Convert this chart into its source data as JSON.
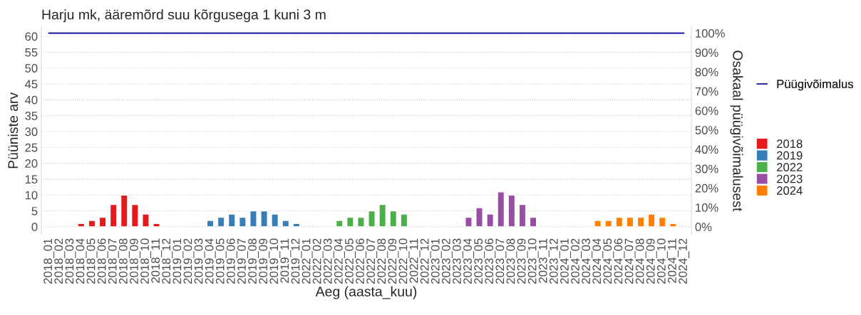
{
  "chart_data": {
    "type": "bar",
    "title": "Harju mk, ääremõrd suu kõrgusega 1 kuni 3 m",
    "xlabel": "Aeg (aasta_kuu)",
    "ylabel": "Püüniste arv",
    "y2label": "Osakaal püügivõimalusest",
    "categories": [
      "2018_01",
      "2018_02",
      "2018_03",
      "2018_04",
      "2018_05",
      "2018_06",
      "2018_07",
      "2018_08",
      "2018_09",
      "2018_10",
      "2018_11",
      "2018_12",
      "2019_01",
      "2019_02",
      "2019_03",
      "2019_04",
      "2019_05",
      "2019_06",
      "2019_07",
      "2019_08",
      "2019_09",
      "2019_10",
      "2019_11",
      "2019_12",
      "2022_01",
      "2022_02",
      "2022_03",
      "2022_04",
      "2022_05",
      "2022_06",
      "2022_07",
      "2022_08",
      "2022_09",
      "2022_10",
      "2022_11",
      "2022_12",
      "2023_01",
      "2023_02",
      "2023_03",
      "2023_04",
      "2023_05",
      "2023_06",
      "2023_07",
      "2023_08",
      "2023_09",
      "2023_10",
      "2023_11",
      "2023_12",
      "2024_01",
      "2024_02",
      "2024_03",
      "2024_04",
      "2024_05",
      "2024_06",
      "2024_07",
      "2024_08",
      "2024_09",
      "2024_10",
      "2024_11",
      "2024_12"
    ],
    "series": [
      {
        "name": "2018",
        "color": "#e41a1c",
        "values": [
          null,
          null,
          null,
          1,
          2,
          3,
          7,
          10,
          7,
          4,
          1,
          null,
          null,
          null,
          null,
          null,
          null,
          null,
          null,
          null,
          null,
          null,
          null,
          null,
          null,
          null,
          null,
          null,
          null,
          null,
          null,
          null,
          null,
          null,
          null,
          null,
          null,
          null,
          null,
          null,
          null,
          null,
          null,
          null,
          null,
          null,
          null,
          null,
          null,
          null,
          null,
          null,
          null,
          null,
          null,
          null,
          null,
          null,
          null,
          null
        ]
      },
      {
        "name": "2019",
        "color": "#377eb8",
        "values": [
          null,
          null,
          null,
          null,
          null,
          null,
          null,
          null,
          null,
          null,
          null,
          null,
          null,
          null,
          null,
          2,
          3,
          4,
          3,
          5,
          5,
          4,
          2,
          1,
          null,
          null,
          null,
          null,
          null,
          null,
          null,
          null,
          null,
          null,
          null,
          null,
          null,
          null,
          null,
          null,
          null,
          null,
          null,
          null,
          null,
          null,
          null,
          null,
          null,
          null,
          null,
          null,
          null,
          null,
          null,
          null,
          null,
          null,
          null,
          null
        ]
      },
      {
        "name": "2022",
        "color": "#4daf4a",
        "values": [
          null,
          null,
          null,
          null,
          null,
          null,
          null,
          null,
          null,
          null,
          null,
          null,
          null,
          null,
          null,
          null,
          null,
          null,
          null,
          null,
          null,
          null,
          null,
          null,
          null,
          null,
          null,
          2,
          3,
          3,
          5,
          7,
          5,
          4,
          null,
          null,
          null,
          null,
          null,
          null,
          null,
          null,
          null,
          null,
          null,
          null,
          null,
          null,
          null,
          null,
          null,
          null,
          null,
          null,
          null,
          null,
          null,
          null,
          null,
          null
        ]
      },
      {
        "name": "2023",
        "color": "#984ea3",
        "values": [
          null,
          null,
          null,
          null,
          null,
          null,
          null,
          null,
          null,
          null,
          null,
          null,
          null,
          null,
          null,
          null,
          null,
          null,
          null,
          null,
          null,
          null,
          null,
          null,
          null,
          null,
          null,
          null,
          null,
          null,
          null,
          null,
          null,
          null,
          null,
          null,
          null,
          null,
          null,
          3,
          6,
          4,
          11,
          10,
          7,
          3,
          null,
          null,
          null,
          null,
          null,
          null,
          null,
          null,
          null,
          null,
          null,
          null,
          null,
          null
        ]
      },
      {
        "name": "2024",
        "color": "#ff7f00",
        "values": [
          null,
          null,
          null,
          null,
          null,
          null,
          null,
          null,
          null,
          null,
          null,
          null,
          null,
          null,
          null,
          null,
          null,
          null,
          null,
          null,
          null,
          null,
          null,
          null,
          null,
          null,
          null,
          null,
          null,
          null,
          null,
          null,
          null,
          null,
          null,
          null,
          null,
          null,
          null,
          null,
          null,
          null,
          null,
          null,
          null,
          null,
          null,
          null,
          null,
          null,
          null,
          2,
          2,
          3,
          3,
          3,
          4,
          3,
          1,
          null
        ]
      },
      {
        "name": "Püügivõimalus",
        "type": "line",
        "axis": "y2",
        "color": "#2b2bb0",
        "values": [
          100,
          100,
          100,
          100,
          100,
          100,
          100,
          100,
          100,
          100,
          100,
          100,
          100,
          100,
          100,
          100,
          100,
          100,
          100,
          100,
          100,
          100,
          100,
          100,
          100,
          100,
          100,
          100,
          100,
          100,
          100,
          100,
          100,
          100,
          100,
          100,
          100,
          100,
          100,
          100,
          100,
          100,
          100,
          100,
          100,
          100,
          100,
          100,
          100,
          100,
          100,
          100,
          100,
          100,
          100,
          100,
          100,
          100,
          100,
          100
        ]
      }
    ],
    "ylim": [
      -2.5,
      63
    ],
    "yticks": [
      0,
      5,
      10,
      15,
      20,
      25,
      30,
      35,
      40,
      45,
      50,
      55,
      60
    ],
    "y2lim": [
      -4.1,
      103.3
    ],
    "y2ticks": [
      {
        "value": 0,
        "label": "0%"
      },
      {
        "value": 10,
        "label": "10%"
      },
      {
        "value": 20,
        "label": "20%"
      },
      {
        "value": 30,
        "label": "30%"
      },
      {
        "value": 40,
        "label": "40%"
      },
      {
        "value": 50,
        "label": "50%"
      },
      {
        "value": 60,
        "label": "60%"
      },
      {
        "value": 70,
        "label": "70%"
      },
      {
        "value": 80,
        "label": "80%"
      },
      {
        "value": 90,
        "label": "90%"
      },
      {
        "value": 100,
        "label": "100%"
      }
    ],
    "grid": "y",
    "legend": "right"
  }
}
